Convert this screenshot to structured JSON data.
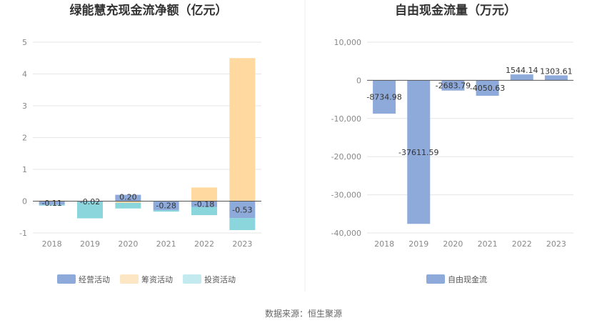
{
  "source_text": "数据来源：恒生聚源",
  "colors": {
    "operating": "#8eaadb",
    "financing": "#ffd9a0",
    "investing": "#8ad6dc",
    "fcf": "#8eaadb",
    "legend_financing": "#fde6c3",
    "legend_investing": "#c3ebef",
    "grid": "#e6e6e6",
    "axis": "#555555"
  },
  "chart_data": [
    {
      "type": "bar",
      "title": "绿能慧充现金流净额（亿元）",
      "categories": [
        "2018",
        "2019",
        "2020",
        "2021",
        "2022",
        "2023"
      ],
      "ylim": [
        -1,
        5
      ],
      "yticks": [
        "5",
        "4",
        "3",
        "2",
        "1",
        "0",
        "-1"
      ],
      "grid": true,
      "legend_position": "bottom",
      "series": [
        {
          "name": "经营活动",
          "values": [
            -0.11,
            -0.02,
            0.2,
            -0.28,
            -0.18,
            -0.53
          ],
          "labels": [
            "-0.11",
            "-0.02",
            "0.20",
            "-0.28",
            "-0.18",
            "-0.53"
          ]
        },
        {
          "name": "筹资活动",
          "values": [
            0.02,
            0.0,
            -0.05,
            0.0,
            0.43,
            4.5
          ]
        },
        {
          "name": "投资活动",
          "values": [
            -0.03,
            -0.52,
            -0.18,
            -0.05,
            -0.26,
            -0.38
          ]
        }
      ]
    },
    {
      "type": "bar",
      "title": "自由现金流量（万元）",
      "categories": [
        "2018",
        "2019",
        "2020",
        "2021",
        "2022",
        "2023"
      ],
      "ylim": [
        -40000,
        10000
      ],
      "yticks": [
        "10,000",
        "0",
        "-10,000",
        "-20,000",
        "-30,000",
        "-40,000"
      ],
      "grid": true,
      "legend_position": "bottom",
      "series": [
        {
          "name": "自由现金流",
          "values": [
            -8734.98,
            -37611.59,
            -2683.79,
            -4050.63,
            1544.14,
            1303.61
          ],
          "labels": [
            "-8734.98",
            "-37611.59",
            "-2683.79",
            "-4050.63",
            "1544.14",
            "1303.61"
          ]
        }
      ]
    }
  ]
}
